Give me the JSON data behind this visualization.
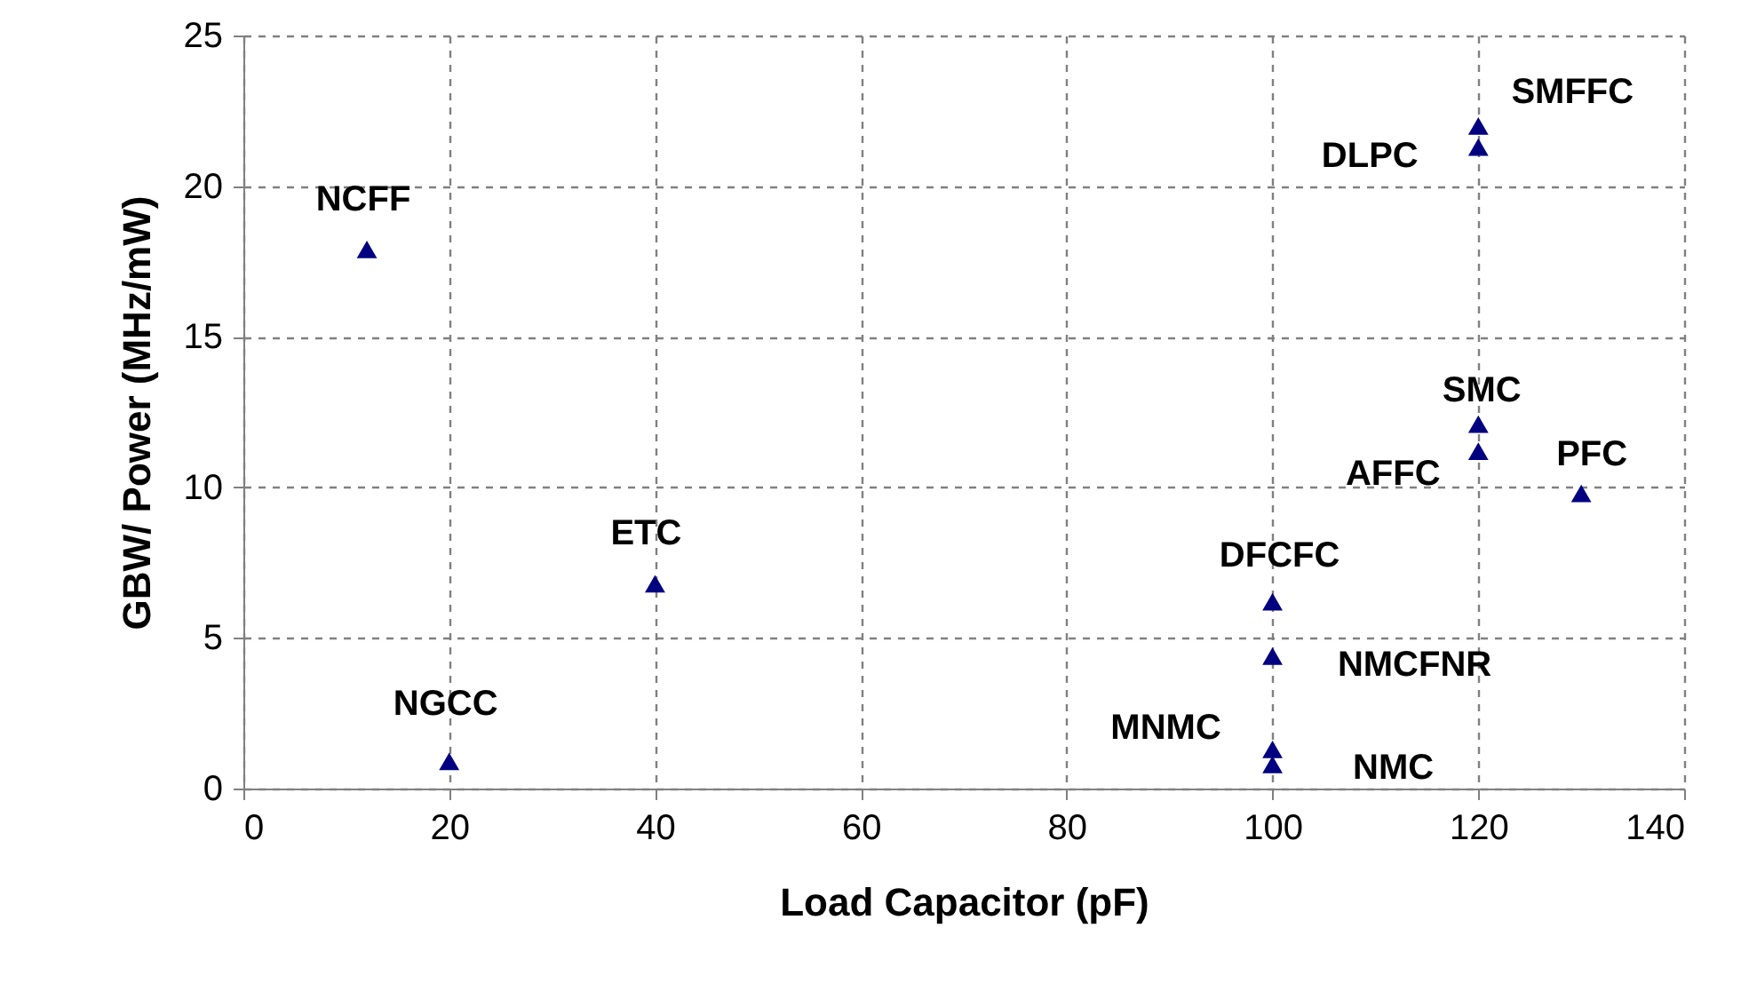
{
  "chart_data": {
    "type": "scatter",
    "xlabel": "Load Capacitor (pF)",
    "ylabel": "GBW/ Power (MHz/mW)",
    "x": [
      12,
      20,
      40,
      100,
      100,
      100,
      100,
      120,
      120,
      120,
      120,
      130
    ],
    "series": [
      {
        "color": "#000080",
        "values": [
          17.9,
          0.9,
          6.8,
          6.2,
          4.4,
          1.3,
          0.8,
          22.0,
          21.3,
          12.1,
          11.2,
          9.8
        ]
      }
    ],
    "marker": "triangle",
    "xlim": [
      0,
      140
    ],
    "xticks": [
      0,
      20,
      40,
      60,
      80,
      100,
      120,
      140
    ],
    "ylim": [
      0,
      25
    ],
    "yticks": [
      0,
      5,
      10,
      15,
      20,
      25
    ],
    "grid": true,
    "line_style": "dashed",
    "annotations": [
      {
        "text": "NCFF",
        "x": 12,
        "y": 17.9
      },
      {
        "text": "NGCC",
        "x": 20,
        "y": 0.9
      },
      {
        "text": "ETC",
        "x": 40,
        "y": 6.8
      },
      {
        "text": "DFCFC",
        "x": 100,
        "y": 6.2
      },
      {
        "text": "NMCFNR",
        "x": 100,
        "y": 4.4
      },
      {
        "text": "MNMC",
        "x": 100,
        "y": 1.3
      },
      {
        "text": "NMC",
        "x": 100,
        "y": 0.8
      },
      {
        "text": "SMFFC",
        "x": 120,
        "y": 22.0
      },
      {
        "text": "DLPC",
        "x": 120,
        "y": 21.3
      },
      {
        "text": "SMC",
        "x": 120,
        "y": 12.1
      },
      {
        "text": "AFFC",
        "x": 120,
        "y": 11.2
      },
      {
        "text": "PFC",
        "x": 130,
        "y": 9.8
      }
    ]
  }
}
